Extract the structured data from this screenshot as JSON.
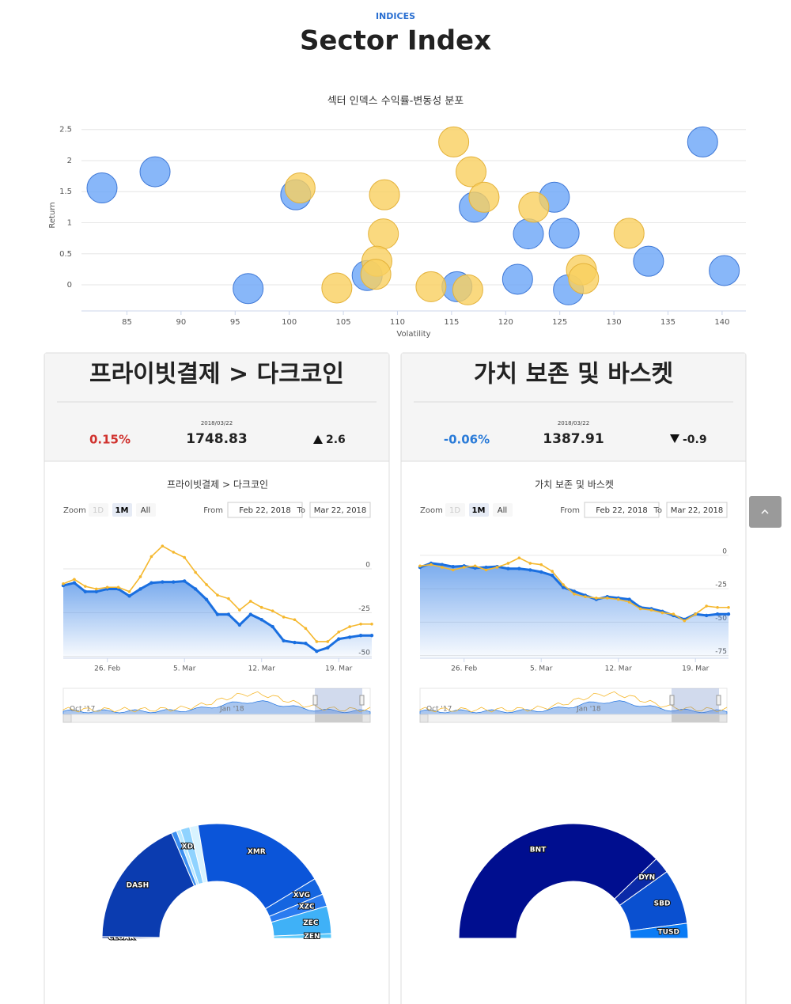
{
  "header": {
    "eyebrow": "INDICES",
    "title": "Sector Index"
  },
  "cards": [
    {
      "title": "프라이빗결제 > 다크코인",
      "date": "2018/03/22",
      "change_pct": "0.15%",
      "value": "1748.83",
      "change": "2.6",
      "direction": "up",
      "range_selector": {
        "zoom_label": "Zoom",
        "buttons": [
          "1D",
          "1M",
          "All"
        ],
        "from_label": "From",
        "from": "Feb 22, 2018",
        "to_label": "To",
        "to": "Mar 22, 2018"
      },
      "navigator": [
        "Oct '17",
        "Jan '18"
      ]
    },
    {
      "title": "가치 보존 및 바스켓",
      "date": "2018/03/22",
      "change_pct": "-0.06%",
      "value": "1387.91",
      "change": "-0.9",
      "direction": "down",
      "range_selector": {
        "zoom_label": "Zoom",
        "buttons": [
          "1D",
          "1M",
          "All"
        ],
        "from_label": "From",
        "from": "Feb 22, 2018",
        "to_label": "To",
        "to": "Mar 22, 2018"
      },
      "navigator": [
        "Oct '17",
        "Jan '18"
      ]
    }
  ],
  "chart_data": [
    {
      "type": "scatter",
      "title": "섹터 인덱스 수익률-변동성 분포",
      "x_label": "Volatility",
      "y_label": "Return",
      "xlim": [
        80.8,
        142.2
      ],
      "ylim": [
        -0.42,
        2.7
      ],
      "xticks": [
        85,
        90,
        95,
        100,
        105,
        110,
        115,
        120,
        125,
        130,
        135,
        140
      ],
      "yticks": [
        0,
        0.5,
        1,
        1.5,
        2,
        2.5
      ],
      "grid": true,
      "series": [
        {
          "color": "#6aa5f7",
          "x": [
            82.7,
            87.6,
            100.6,
            96.2,
            107.2,
            115.5,
            117.1,
            121.1,
            122.1,
            124.5,
            125.4,
            125.8,
            133.2,
            138.2,
            140.2
          ],
          "y": [
            1.56,
            1.82,
            1.45,
            -0.06,
            0.15,
            -0.03,
            1.25,
            0.09,
            0.82,
            1.41,
            0.83,
            -0.08,
            0.38,
            2.3,
            0.23
          ]
        },
        {
          "color": "#f9cf5f",
          "x": [
            101.0,
            104.4,
            108.8,
            108.7,
            108.1,
            108.0,
            113.1,
            115.2,
            116.8,
            116.5,
            118.0,
            122.6,
            131.4,
            127.0,
            127.2
          ],
          "y": [
            1.56,
            -0.05,
            1.45,
            0.82,
            0.38,
            0.17,
            -0.03,
            2.3,
            1.82,
            -0.08,
            1.41,
            1.25,
            0.83,
            0.24,
            0.1
          ]
        }
      ]
    },
    {
      "type": "line",
      "title": "프라이빗결제 > 다크코인",
      "categories": [
        null,
        null,
        null,
        null,
        "26. Feb",
        null,
        null,
        null,
        null,
        null,
        null,
        "5. Mar",
        null,
        null,
        null,
        null,
        null,
        null,
        "12. Mar",
        null,
        null,
        null,
        null,
        null,
        null,
        "19. Mar",
        null,
        null,
        null
      ],
      "ylim": [
        -51,
        23
      ],
      "yticks": [
        -50,
        -25,
        0
      ],
      "grid": true,
      "series": [
        {
          "color": "#1a6fe0",
          "area": true,
          "values": [
            -9.5,
            -8,
            -13,
            -13,
            -11.5,
            -11.5,
            -15.5,
            -11.5,
            -8,
            -7.5,
            -7.5,
            -7,
            -11.5,
            -17.5,
            -26,
            -26,
            -32,
            -26,
            -29,
            -33,
            -41,
            -42,
            -42.5,
            -47,
            -45,
            -40,
            -39,
            -38,
            -38
          ]
        },
        {
          "color": "#f5b82e",
          "values": [
            -8.5,
            -6,
            -10,
            -11.5,
            -10.5,
            -10.5,
            -13,
            -4.5,
            7,
            13,
            9.5,
            6.5,
            -2,
            -9,
            -15,
            -17,
            -23.5,
            -18.5,
            -22,
            -24,
            -27.5,
            -29,
            -34,
            -41.5,
            -41.5,
            -36,
            -33,
            -31.5,
            -31.5
          ]
        }
      ]
    },
    {
      "type": "pie",
      "categories": [
        "CLOAK",
        "DASH",
        null,
        null,
        "XDN",
        null,
        "XMR",
        "XVG",
        "XZC",
        "ZEC",
        "ZEN"
      ],
      "values": [
        0.5,
        36.7,
        1.5,
        1.2,
        2.6,
        2.4,
        38,
        4.8,
        3.5,
        7.8,
        1.3
      ],
      "colors": [
        "#0a2d8f",
        "#0b3cb0",
        "#3b8ef0",
        "#b8e8ff",
        "#8fd3ff",
        "#d8f3ff",
        "#0b55d9",
        "#1565e0",
        "#2a7bf0",
        "#3fb1f7",
        "#5ac8fa"
      ]
    },
    {
      "type": "line",
      "title": "가치 보존 및 바스켓",
      "categories": [
        null,
        null,
        null,
        null,
        "26. Feb",
        null,
        null,
        null,
        null,
        null,
        null,
        "5. Mar",
        null,
        null,
        null,
        null,
        null,
        null,
        "12. Mar",
        null,
        null,
        null,
        null,
        null,
        null,
        "19. Mar",
        null,
        null,
        null
      ],
      "ylim": [
        -77,
        20
      ],
      "yticks": [
        -75,
        -50,
        -25,
        0
      ],
      "grid": true,
      "series": [
        {
          "color": "#1a6fe0",
          "area": true,
          "values": [
            -9,
            -6,
            -7,
            -8.5,
            -8,
            -9.5,
            -9,
            -8.5,
            -10,
            -10,
            -11,
            -12.5,
            -15,
            -24,
            -27,
            -30,
            -33,
            -31,
            -32,
            -33,
            -39,
            -40,
            -42,
            -45,
            -48,
            -44,
            -45,
            -44,
            -44
          ]
        },
        {
          "color": "#f5b82e",
          "values": [
            -8,
            -7,
            -9,
            -11,
            -9,
            -8,
            -11,
            -9,
            -6,
            -2,
            -6,
            -7,
            -12,
            -22,
            -29,
            -31,
            -32,
            -32,
            -33,
            -35,
            -40,
            -41,
            -43,
            -44,
            -49,
            -44,
            -38,
            -39,
            -39
          ]
        }
      ]
    },
    {
      "type": "pie",
      "categories": [
        "BNT",
        "DYN",
        "SBD",
        "TUSD"
      ],
      "values": [
        75.6,
        4.6,
        15.5,
        4.2
      ],
      "colors": [
        "#000e8f",
        "#0a2aa8",
        "#0a50d0",
        "#0a7bf5"
      ]
    }
  ]
}
